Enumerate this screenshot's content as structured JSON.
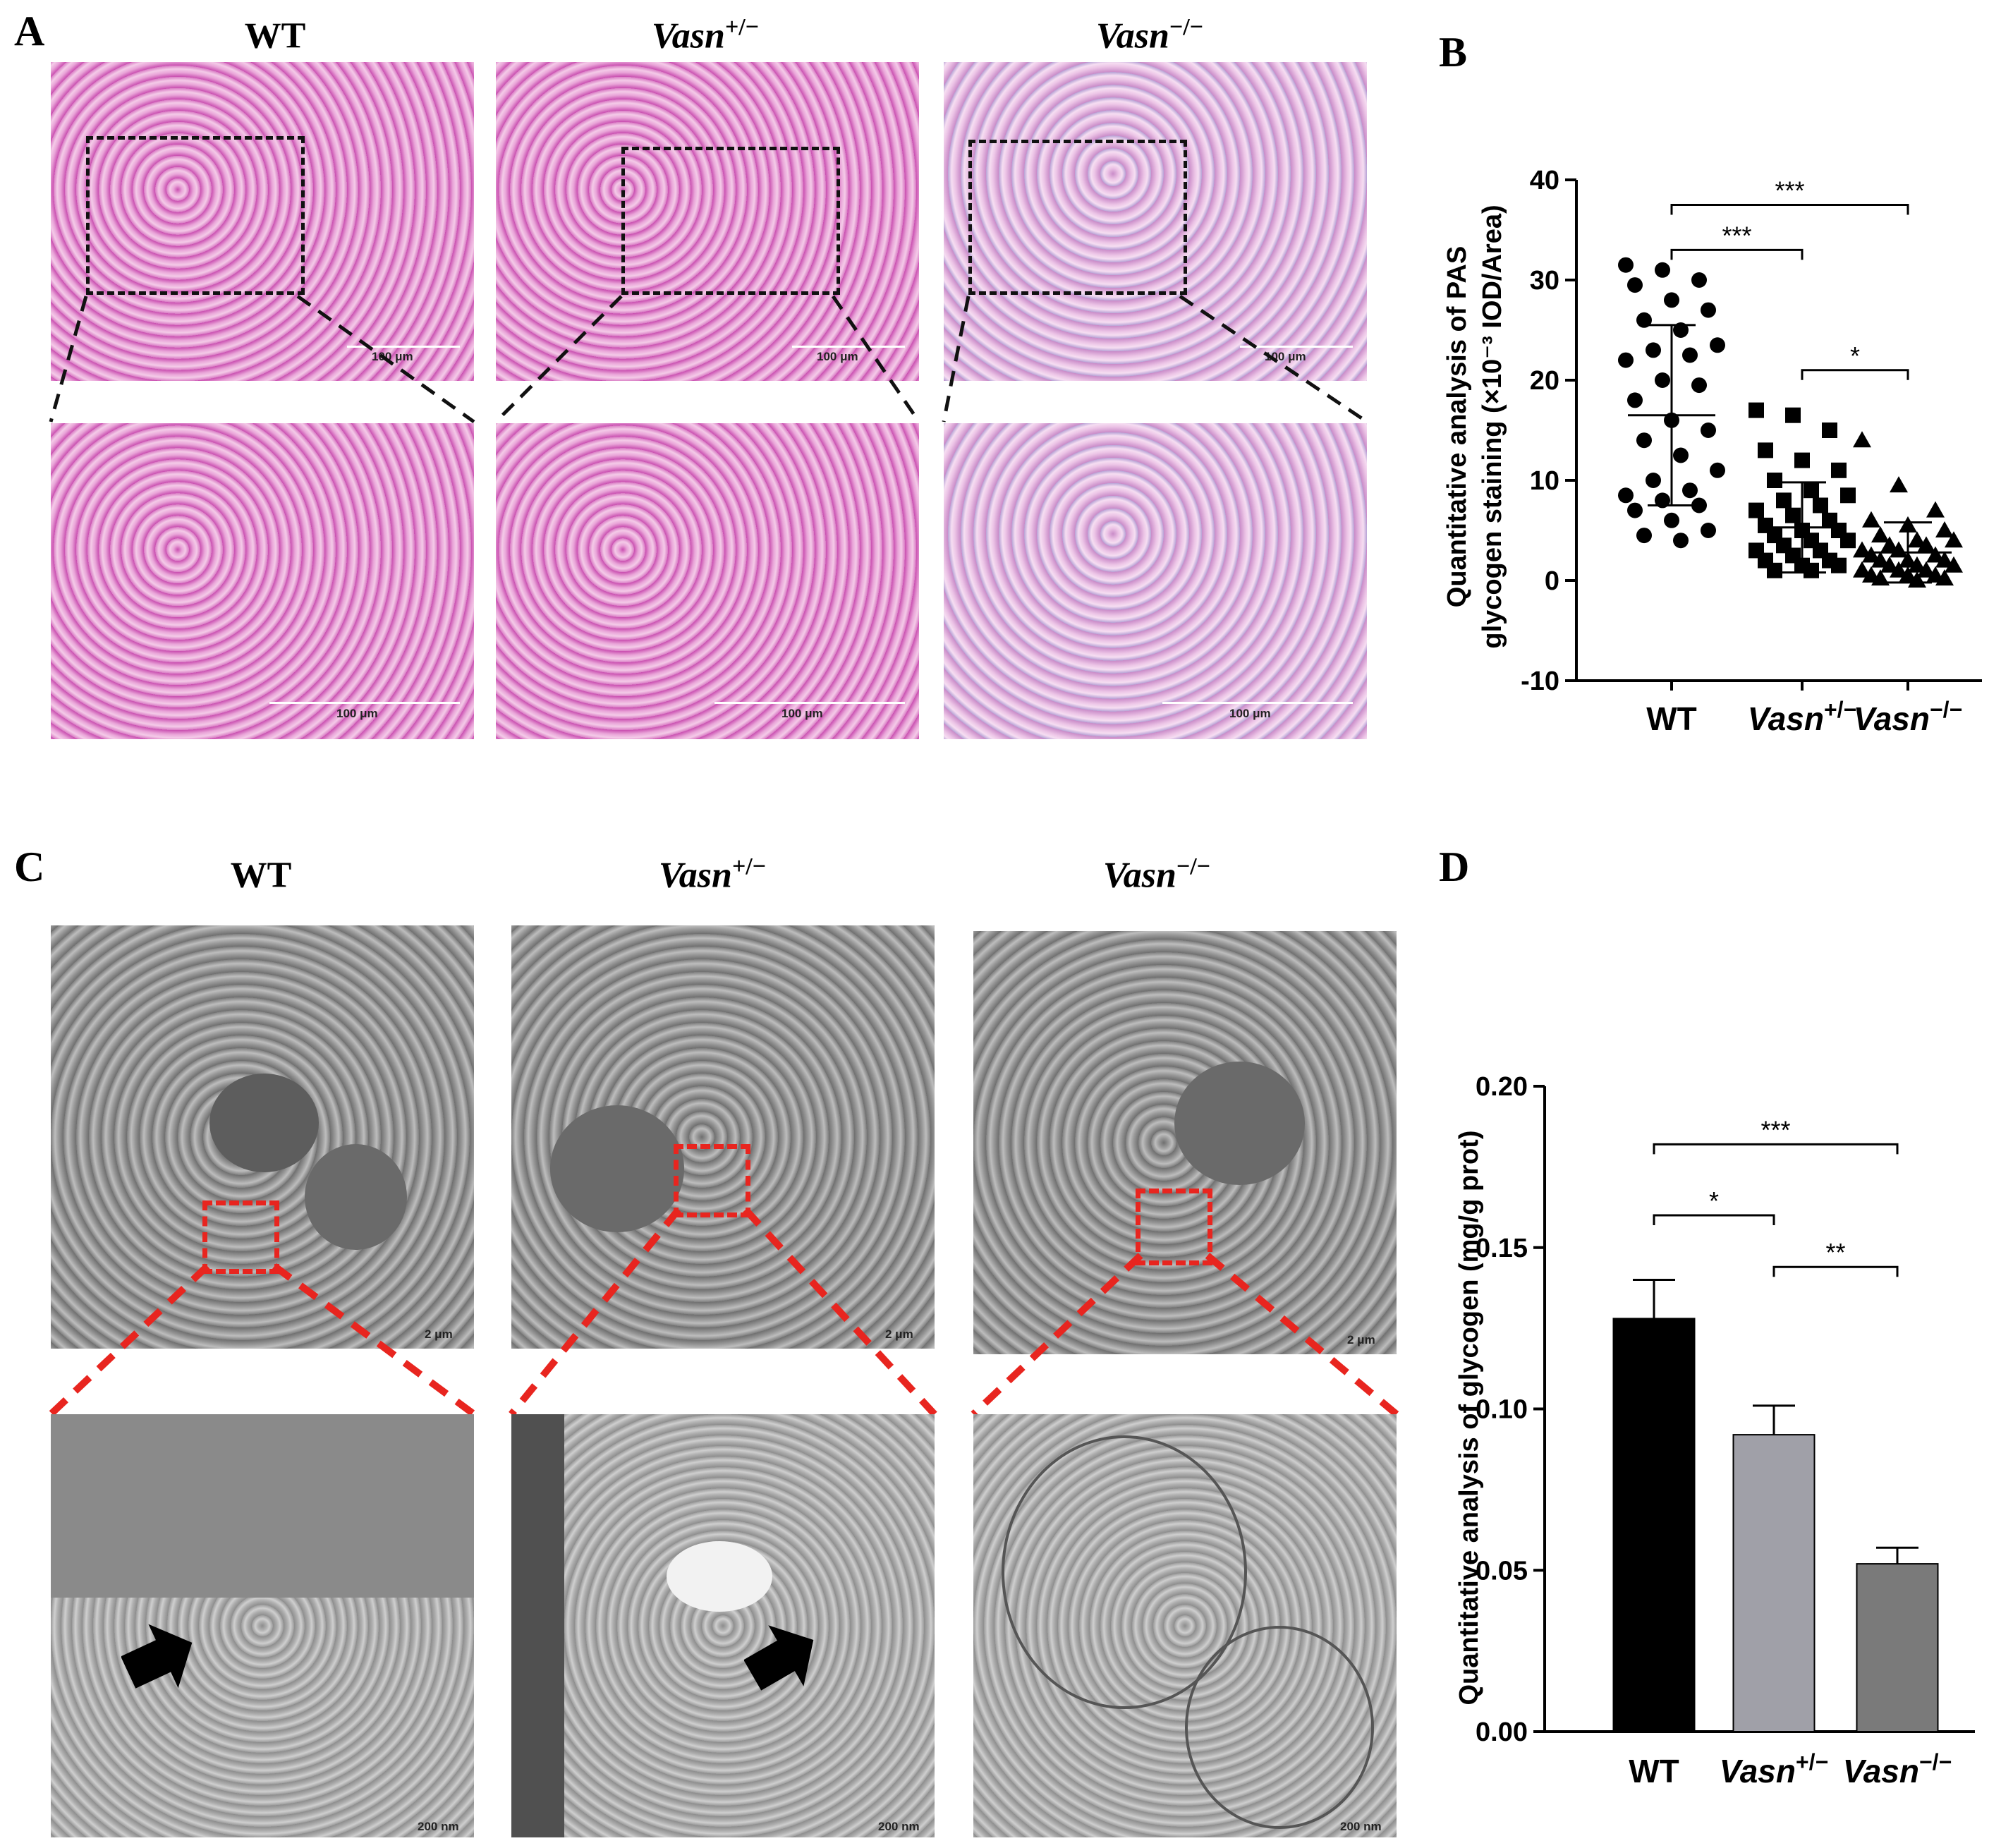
{
  "panel_a": {
    "letter": "A",
    "columns": [
      {
        "prefix": "WT",
        "gene": "",
        "sup": ""
      },
      {
        "prefix": "",
        "gene": "Vasn",
        "sup": "+/−"
      },
      {
        "prefix": "",
        "gene": "Vasn",
        "sup": "−/−"
      }
    ],
    "scale_label": "100 μm"
  },
  "panel_c": {
    "letter": "C",
    "columns": [
      {
        "prefix": "WT",
        "gene": "",
        "sup": ""
      },
      {
        "prefix": "",
        "gene": "Vasn",
        "sup": "+/−"
      },
      {
        "prefix": "",
        "gene": "Vasn",
        "sup": "−/−"
      }
    ],
    "scale_label_top": "2 μm",
    "scale_label_bottom": "200 nm"
  },
  "chart_data": [
    {
      "panel": "B",
      "type": "scatter",
      "ylabel_line1": "Quantitative analysis of PAS",
      "ylabel_line2": "glycogen staining (×10⁻³ IOD/Area)",
      "categories": [
        {
          "gene": "WT",
          "sup": ""
        },
        {
          "gene": "Vasn",
          "sup": "+/−"
        },
        {
          "gene": "Vasn",
          "sup": "−/−"
        }
      ],
      "ylim": [
        -10,
        40
      ],
      "yticks": [
        -10,
        0,
        10,
        20,
        30,
        40
      ],
      "series": [
        {
          "marker": "circle",
          "mean": 16.5,
          "sd": 9.0,
          "values": [
            31.5,
            31,
            30,
            29.5,
            28,
            27,
            26,
            25,
            23.5,
            23,
            22.5,
            22,
            20,
            19.5,
            18,
            16,
            15,
            14,
            12.5,
            11,
            10,
            9,
            8.5,
            8,
            7.5,
            7,
            6,
            5,
            4.5,
            4
          ]
        },
        {
          "marker": "square",
          "mean": 5.3,
          "sd": 4.5,
          "values": [
            17,
            16.5,
            15,
            13,
            12,
            11,
            10,
            9,
            8.5,
            8,
            7.5,
            7,
            6.5,
            6,
            5.5,
            5,
            5,
            4.5,
            4,
            4,
            3.5,
            3,
            3,
            2.5,
            2,
            2,
            1.5,
            1.5,
            1,
            1
          ]
        },
        {
          "marker": "triangle",
          "mean": 2.8,
          "sd": 3.0,
          "values": [
            14,
            9.5,
            7,
            6,
            5.5,
            5,
            4.5,
            4,
            4,
            3.5,
            3.5,
            3,
            3,
            2.5,
            2.5,
            2,
            2,
            2,
            1.5,
            1.5,
            1.5,
            1,
            1,
            1,
            0.5,
            0.5,
            0.5,
            0.2,
            0.2,
            0
          ]
        }
      ],
      "significance": [
        {
          "from": 0,
          "to": 2,
          "label": "***",
          "y": 37.5
        },
        {
          "from": 0,
          "to": 1,
          "label": "***",
          "y": 33
        },
        {
          "from": 1,
          "to": 2,
          "label": "*",
          "y": 21
        }
      ]
    },
    {
      "panel": "D",
      "type": "bar",
      "ylabel": "Quantitative analysis of glycogen (mg/g prot)",
      "categories": [
        {
          "gene": "WT",
          "sup": ""
        },
        {
          "gene": "Vasn",
          "sup": "+/−"
        },
        {
          "gene": "Vasn",
          "sup": "−/−"
        }
      ],
      "ylim": [
        0,
        0.2
      ],
      "yticks": [
        "0.00",
        "0.05",
        "0.10",
        "0.15",
        "0.20"
      ],
      "values": [
        0.128,
        0.092,
        0.052
      ],
      "errors": [
        0.012,
        0.009,
        0.005
      ],
      "colors": [
        "#000000",
        "#a0a0a8",
        "#7a7a7a"
      ],
      "significance": [
        {
          "from": 0,
          "to": 2,
          "label": "***",
          "y": 0.182
        },
        {
          "from": 0,
          "to": 1,
          "label": "*",
          "y": 0.16
        },
        {
          "from": 1,
          "to": 2,
          "label": "**",
          "y": 0.144
        }
      ]
    }
  ]
}
